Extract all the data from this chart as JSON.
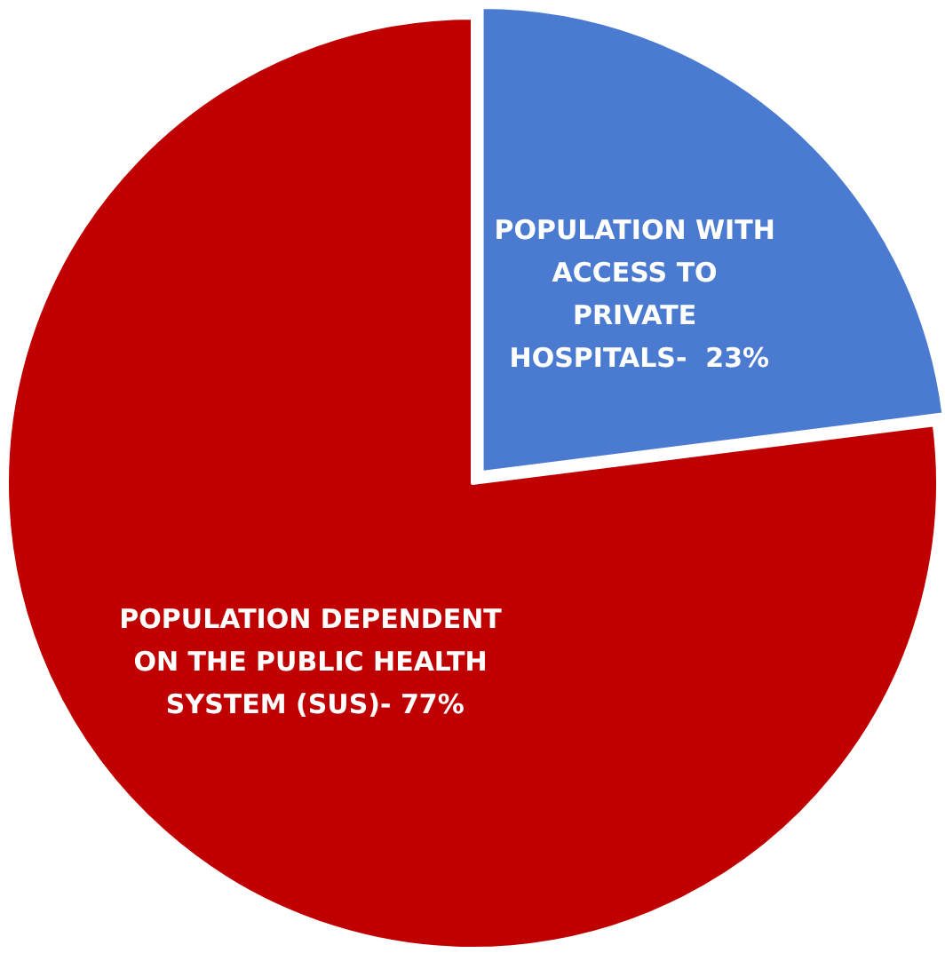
{
  "chart_data": {
    "type": "pie",
    "categories": [
      "POPULATION WITH ACCESS TO PRIVATE HOSPITALS-  23%",
      "POPULATION DEPENDENT ON THE PUBLIC HEALTH SYSTEM (SUS)- 77%"
    ],
    "values": [
      23,
      77
    ],
    "colors": [
      "#4a7bd0",
      "#c00000"
    ],
    "legend": false
  }
}
